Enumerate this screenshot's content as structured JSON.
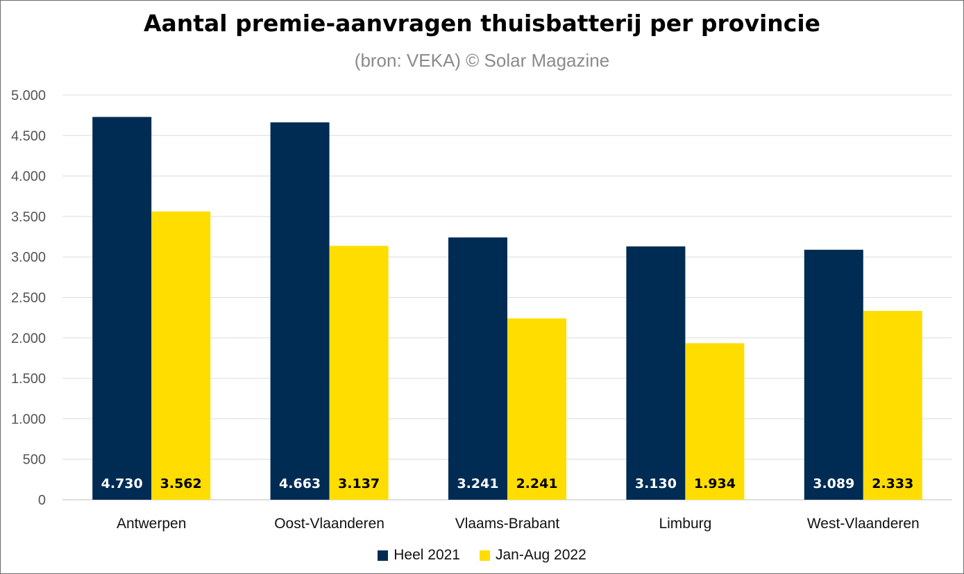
{
  "chart_data": {
    "type": "bar",
    "title": "Aantal premie-aanvragen thuisbatterij per provincie",
    "subtitle": "(bron: VEKA) © Solar Magazine",
    "categories": [
      "Antwerpen",
      "Oost-Vlaanderen",
      "Vlaams-Brabant",
      "Limburg",
      "West-Vlaanderen"
    ],
    "series": [
      {
        "name": "Heel 2021",
        "values": [
          4730,
          4663,
          3241,
          3130,
          3089
        ],
        "labels": [
          "4.730",
          "4.663",
          "3.241",
          "3.130",
          "3.089"
        ],
        "color": "#002b53",
        "label_color": "#ffffff"
      },
      {
        "name": "Jan-Aug 2022",
        "values": [
          3562,
          3137,
          2241,
          1934,
          2333
        ],
        "labels": [
          "3.562",
          "3.137",
          "2.241",
          "1.934",
          "2.333"
        ],
        "color": "#ffdd00",
        "label_color": "#000000"
      }
    ],
    "ylim": [
      0,
      5000
    ],
    "yticks": [
      0,
      500,
      1000,
      1500,
      2000,
      2500,
      3000,
      3500,
      4000,
      4500,
      5000
    ],
    "ytick_labels": [
      "0",
      "500",
      "1.000",
      "1.500",
      "2.000",
      "2.500",
      "3.000",
      "3.500",
      "4.000",
      "4.500",
      "5.000"
    ],
    "grid": true,
    "legend_position": "bottom"
  }
}
